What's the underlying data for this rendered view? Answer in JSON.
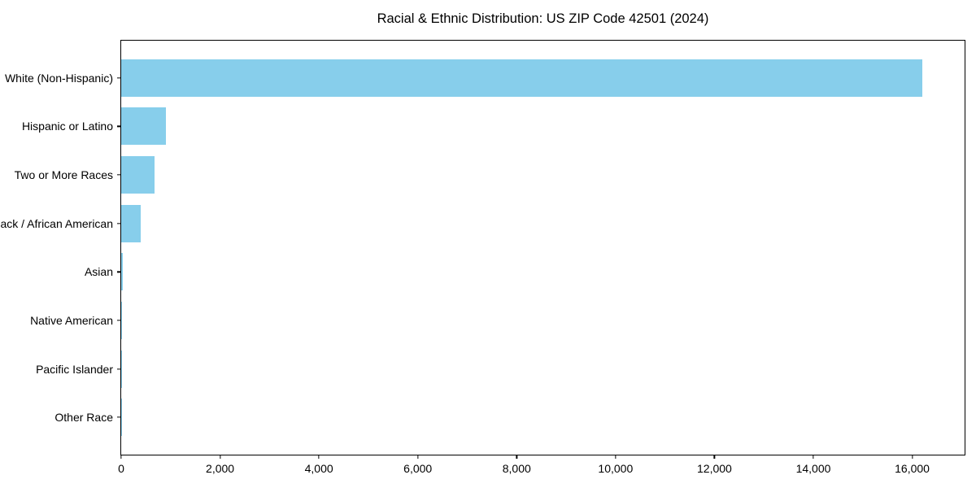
{
  "chart_data": {
    "type": "bar",
    "orientation": "horizontal",
    "title": "Racial & Ethnic Distribution: US ZIP Code 42501 (2024)",
    "categories": [
      "White (Non-Hispanic)",
      "Hispanic or Latino",
      "Two or More Races",
      "Black / African American",
      "Asian",
      "Native American",
      "Pacific Islander",
      "Other Race"
    ],
    "values": [
      16200,
      900,
      670,
      395,
      30,
      12,
      8,
      5
    ],
    "xlabel": "",
    "ylabel": "",
    "xlim": [
      0,
      17060
    ],
    "x_ticks": [
      0,
      2000,
      4000,
      6000,
      8000,
      10000,
      12000,
      14000,
      16000
    ],
    "x_tick_labels": [
      "0",
      "2,000",
      "4,000",
      "6,000",
      "8,000",
      "10,000",
      "12,000",
      "14,000",
      "16,000"
    ],
    "bar_color": "#87CEEB",
    "frame_color": "#000000",
    "text_color": "#000000",
    "background_color": "#ffffff",
    "grid": false,
    "legend": false
  }
}
